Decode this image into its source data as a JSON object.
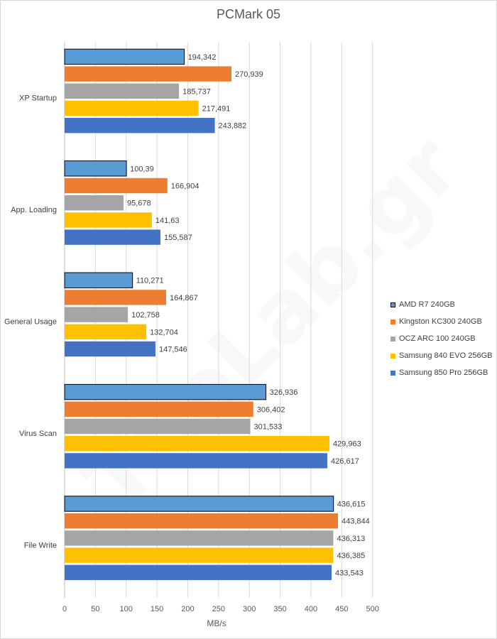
{
  "chart_data": {
    "type": "bar",
    "orientation": "horizontal",
    "title": "PCMark 05",
    "xlabel": "MB/s",
    "ylabel": "",
    "xlim": [
      0,
      500
    ],
    "x_ticks": [
      0,
      50,
      100,
      150,
      200,
      250,
      300,
      350,
      400,
      450,
      500
    ],
    "grid": true,
    "legend_position": "right",
    "categories": [
      "XP Startup",
      "App. Loading",
      "General Usage",
      "Virus Scan",
      "File Write"
    ],
    "series": [
      {
        "name": "AMD R7 240GB",
        "color": "#5b9bd5",
        "outlined": true,
        "values": [
          194.342,
          100.39,
          110.271,
          326.936,
          436.615
        ],
        "labels": [
          "194,342",
          "100,39",
          "110,271",
          "326,936",
          "436,615"
        ]
      },
      {
        "name": "Kingston KC300 240GB",
        "color": "#ed7d31",
        "outlined": false,
        "values": [
          270.939,
          166.904,
          164.867,
          306.402,
          443.844
        ],
        "labels": [
          "270,939",
          "166,904",
          "164,867",
          "306,402",
          "443,844"
        ]
      },
      {
        "name": "OCZ ARC 100 240GB",
        "color": "#a5a5a5",
        "outlined": false,
        "values": [
          185.737,
          95.678,
          102.758,
          301.533,
          436.313
        ],
        "labels": [
          "185,737",
          "95,678",
          "102,758",
          "301,533",
          "436,313"
        ]
      },
      {
        "name": "Samsung 840 EVO 256GB",
        "color": "#ffc000",
        "outlined": false,
        "values": [
          217.491,
          141.63,
          132.704,
          429.963,
          436.385
        ],
        "labels": [
          "217,491",
          "141,63",
          "132,704",
          "429,963",
          "436,385"
        ]
      },
      {
        "name": "Samsung 850 Pro 256GB",
        "color": "#4472c4",
        "outlined": false,
        "values": [
          243.882,
          155.587,
          147.546,
          426.617,
          433.543
        ],
        "labels": [
          "243,882",
          "155,587",
          "147,546",
          "426,617",
          "433,543"
        ]
      }
    ]
  },
  "watermark": "TheLab.gr"
}
